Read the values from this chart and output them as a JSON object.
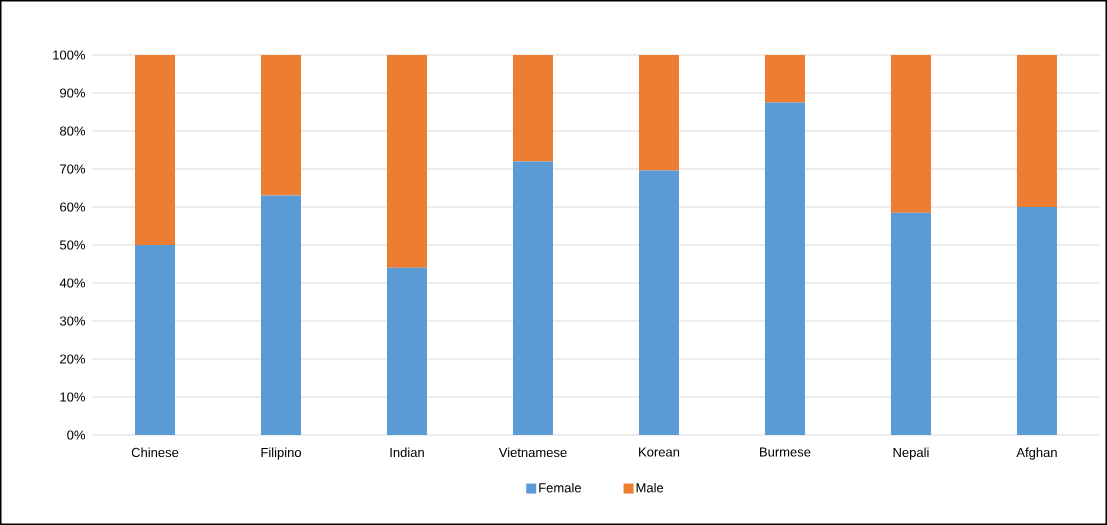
{
  "chart_data": {
    "type": "bar",
    "stacked": true,
    "categories": [
      "Chinese",
      "Filipino",
      "Indian",
      "Vietnamese",
      "Korean",
      "Burmese",
      "Nepali",
      "Afghan"
    ],
    "series": [
      {
        "name": "Female",
        "color": "#5b9bd5",
        "values": [
          50,
          63,
          44,
          72,
          69.6,
          87.5,
          58.5,
          60
        ]
      },
      {
        "name": "Male",
        "color": "#ed7d31",
        "values": [
          50,
          37,
          56,
          28,
          30.4,
          12.5,
          41.5,
          40
        ]
      }
    ],
    "ylim": [
      0,
      100
    ],
    "yticks": [
      {
        "value": 0,
        "label": "0%"
      },
      {
        "value": 10,
        "label": "10%"
      },
      {
        "value": 20,
        "label": "20%"
      },
      {
        "value": 30,
        "label": "30%"
      },
      {
        "value": 40,
        "label": "40%"
      },
      {
        "value": 50,
        "label": "50%"
      },
      {
        "value": 60,
        "label": "60%"
      },
      {
        "value": 70,
        "label": "70%"
      },
      {
        "value": 80,
        "label": "80%"
      },
      {
        "value": 90,
        "label": "90%"
      },
      {
        "value": 100,
        "label": "100%"
      }
    ],
    "grid": "y",
    "legend": "bottom"
  }
}
